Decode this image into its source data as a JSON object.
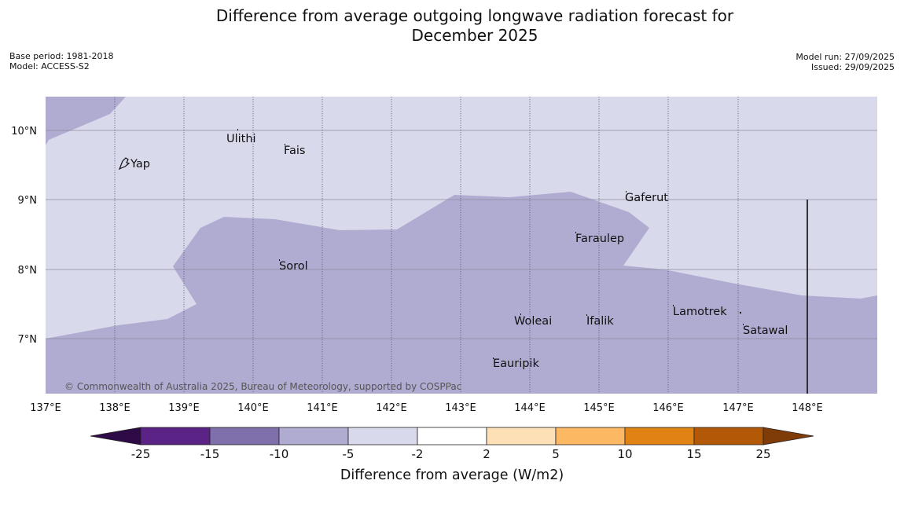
{
  "title": {
    "line1": "Difference from average outgoing longwave radiation forecast for",
    "line2": "December 2025"
  },
  "meta": {
    "base_period": "Base period: 1981-2018",
    "model": "Model: ACCESS-S2",
    "model_run": "Model run: 27/09/2025",
    "issued": "Issued: 29/09/2025"
  },
  "map": {
    "lat_ticks": [
      "10°N",
      "9°N",
      "8°N",
      "7°N"
    ],
    "lon_ticks": [
      "137°E",
      "138°E",
      "139°E",
      "140°E",
      "141°E",
      "142°E",
      "143°E",
      "144°E",
      "145°E",
      "146°E",
      "147°E",
      "148°E"
    ],
    "places": {
      "yap": "Yap",
      "ulithi": "Ulithi",
      "fais": "Fais",
      "gaferut": "Gaferut",
      "faraulep": "Faraulep",
      "sorol": "Sorol",
      "lamotrek": "Lamotrek",
      "woleai": "Woleai",
      "ifalik": "Ifalik",
      "satawal": "Satawal",
      "eauripik": "Eauripik"
    },
    "copyright": "© Commonwealth of Australia 2025, Bureau of Meteorology, supported by COSPPac",
    "colors": {
      "band_minus10_minus5": "#b0abd1",
      "band_minus5_minus2": "#d8d9ea"
    }
  },
  "colorbar": {
    "labels": [
      "-25",
      "-15",
      "-10",
      "-5",
      "-2",
      "2",
      "5",
      "10",
      "15",
      "25"
    ],
    "colors": [
      "#2e0a47",
      "#5a2385",
      "#7f6fab",
      "#b0abd1",
      "#d8d9ea",
      "#ffffff",
      "#fee0b6",
      "#fdb863",
      "#e08214",
      "#b35806",
      "#7f3b08"
    ],
    "title": "Difference from average (W/m2)"
  }
}
